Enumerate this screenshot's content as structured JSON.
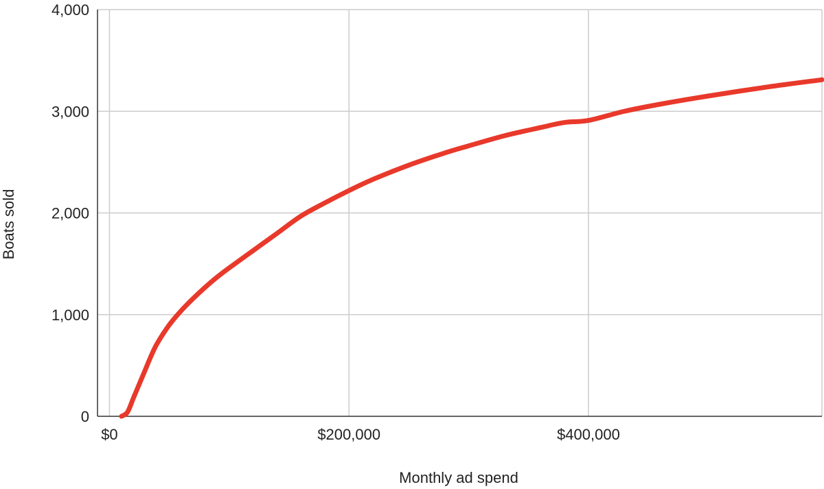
{
  "chart_data": {
    "type": "line",
    "title": "",
    "xlabel": "Monthly ad spend",
    "ylabel": "Boats sold",
    "xlim": [
      -10000,
      595000
    ],
    "ylim": [
      0,
      4000
    ],
    "x_ticks": [
      {
        "value": 0,
        "label": "$0"
      },
      {
        "value": 200000,
        "label": "$200,000"
      },
      {
        "value": 400000,
        "label": "$400,000"
      }
    ],
    "y_ticks": [
      {
        "value": 0,
        "label": "0"
      },
      {
        "value": 1000,
        "label": "1,000"
      },
      {
        "value": 2000,
        "label": "2,000"
      },
      {
        "value": 3000,
        "label": "3,000"
      },
      {
        "value": 4000,
        "label": "4,000"
      }
    ],
    "grid": true,
    "legend": "none",
    "series": [
      {
        "color": "#e8392b",
        "points": [
          [
            10000,
            0
          ],
          [
            15000,
            40
          ],
          [
            20000,
            180
          ],
          [
            25000,
            320
          ],
          [
            30000,
            460
          ],
          [
            35000,
            600
          ],
          [
            40000,
            720
          ],
          [
            50000,
            900
          ],
          [
            60000,
            1040
          ],
          [
            70000,
            1160
          ],
          [
            80000,
            1270
          ],
          [
            90000,
            1370
          ],
          [
            100000,
            1460
          ],
          [
            120000,
            1630
          ],
          [
            140000,
            1800
          ],
          [
            160000,
            1970
          ],
          [
            180000,
            2100
          ],
          [
            200000,
            2220
          ],
          [
            220000,
            2330
          ],
          [
            250000,
            2470
          ],
          [
            280000,
            2590
          ],
          [
            300000,
            2660
          ],
          [
            330000,
            2760
          ],
          [
            360000,
            2840
          ],
          [
            380000,
            2890
          ],
          [
            400000,
            2910
          ],
          [
            430000,
            3000
          ],
          [
            460000,
            3070
          ],
          [
            500000,
            3150
          ],
          [
            550000,
            3240
          ],
          [
            595000,
            3310
          ]
        ]
      }
    ]
  }
}
